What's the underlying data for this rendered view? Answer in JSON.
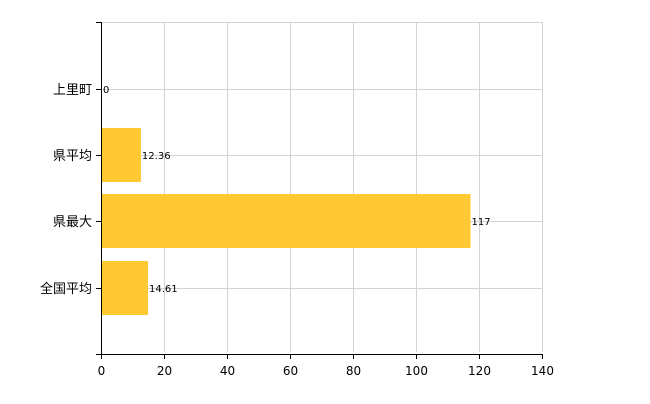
{
  "chart_data": {
    "type": "bar",
    "orientation": "horizontal",
    "categories": [
      "上里町",
      "県平均",
      "県最大",
      "全国平均"
    ],
    "values": [
      0,
      12.36,
      117,
      14.61
    ],
    "value_labels": [
      "0",
      "12.36",
      "117",
      "14.61"
    ],
    "xlim": [
      0,
      140
    ],
    "x_ticks": [
      "0",
      "20",
      "40",
      "60",
      "80",
      "100",
      "120",
      "140"
    ],
    "grid": true,
    "bar_color": "#FFC933"
  }
}
